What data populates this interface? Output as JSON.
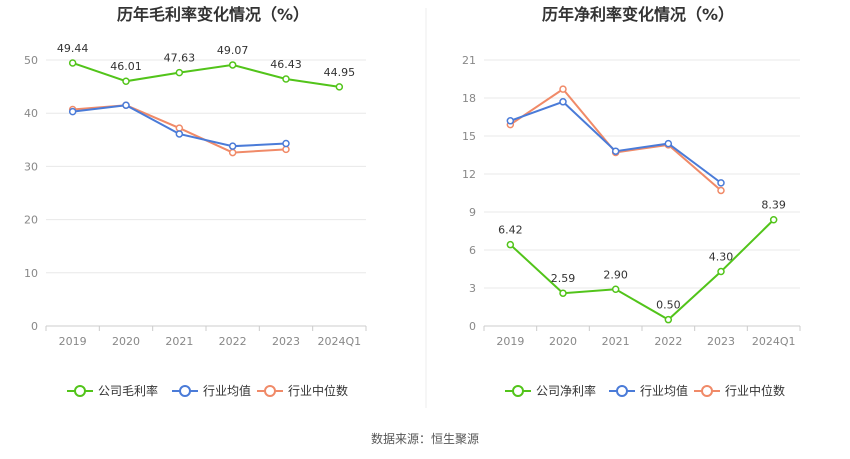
{
  "source": "数据来源：恒生聚源",
  "chart_data": [
    {
      "type": "line",
      "title": "历年毛利率变化情况（%）",
      "categories": [
        "2019",
        "2020",
        "2021",
        "2022",
        "2023",
        "2024Q1"
      ],
      "ylim": [
        0,
        50
      ],
      "yticks": [
        "0",
        "10",
        "20",
        "30",
        "40",
        "50"
      ],
      "grid": true,
      "legend_position": "bottom",
      "series": [
        {
          "name": "公司毛利率",
          "color": "#52c41a",
          "values": [
            49.44,
            46.01,
            47.63,
            49.07,
            46.43,
            44.95
          ],
          "labels": [
            "49.44",
            "46.01",
            "47.63",
            "49.07",
            "46.43",
            "44.95"
          ]
        },
        {
          "name": "行业均值",
          "color": "#4a7bd8",
          "values": [
            40.3,
            41.5,
            36.1,
            33.8,
            34.3,
            null
          ]
        },
        {
          "name": "行业中位数",
          "color": "#f08a68",
          "values": [
            40.7,
            41.5,
            37.2,
            32.6,
            33.2,
            null
          ]
        }
      ]
    },
    {
      "type": "line",
      "title": "历年净利率变化情况（%）",
      "categories": [
        "2019",
        "2020",
        "2021",
        "2022",
        "2023",
        "2024Q1"
      ],
      "ylim": [
        0,
        21
      ],
      "yticks": [
        "0",
        "3",
        "6",
        "9",
        "12",
        "15",
        "18",
        "21"
      ],
      "grid": true,
      "legend_position": "bottom",
      "series": [
        {
          "name": "公司净利率",
          "color": "#52c41a",
          "values": [
            6.42,
            2.59,
            2.9,
            0.5,
            4.3,
            8.39
          ],
          "labels": [
            "6.42",
            "2.59",
            "2.90",
            "0.50",
            "4.30",
            "8.39"
          ]
        },
        {
          "name": "行业均值",
          "color": "#4a7bd8",
          "values": [
            16.2,
            17.7,
            13.8,
            14.4,
            11.3,
            null
          ]
        },
        {
          "name": "行业中位数",
          "color": "#f08a68",
          "values": [
            15.9,
            18.7,
            13.7,
            14.3,
            10.7,
            null
          ]
        }
      ]
    }
  ]
}
